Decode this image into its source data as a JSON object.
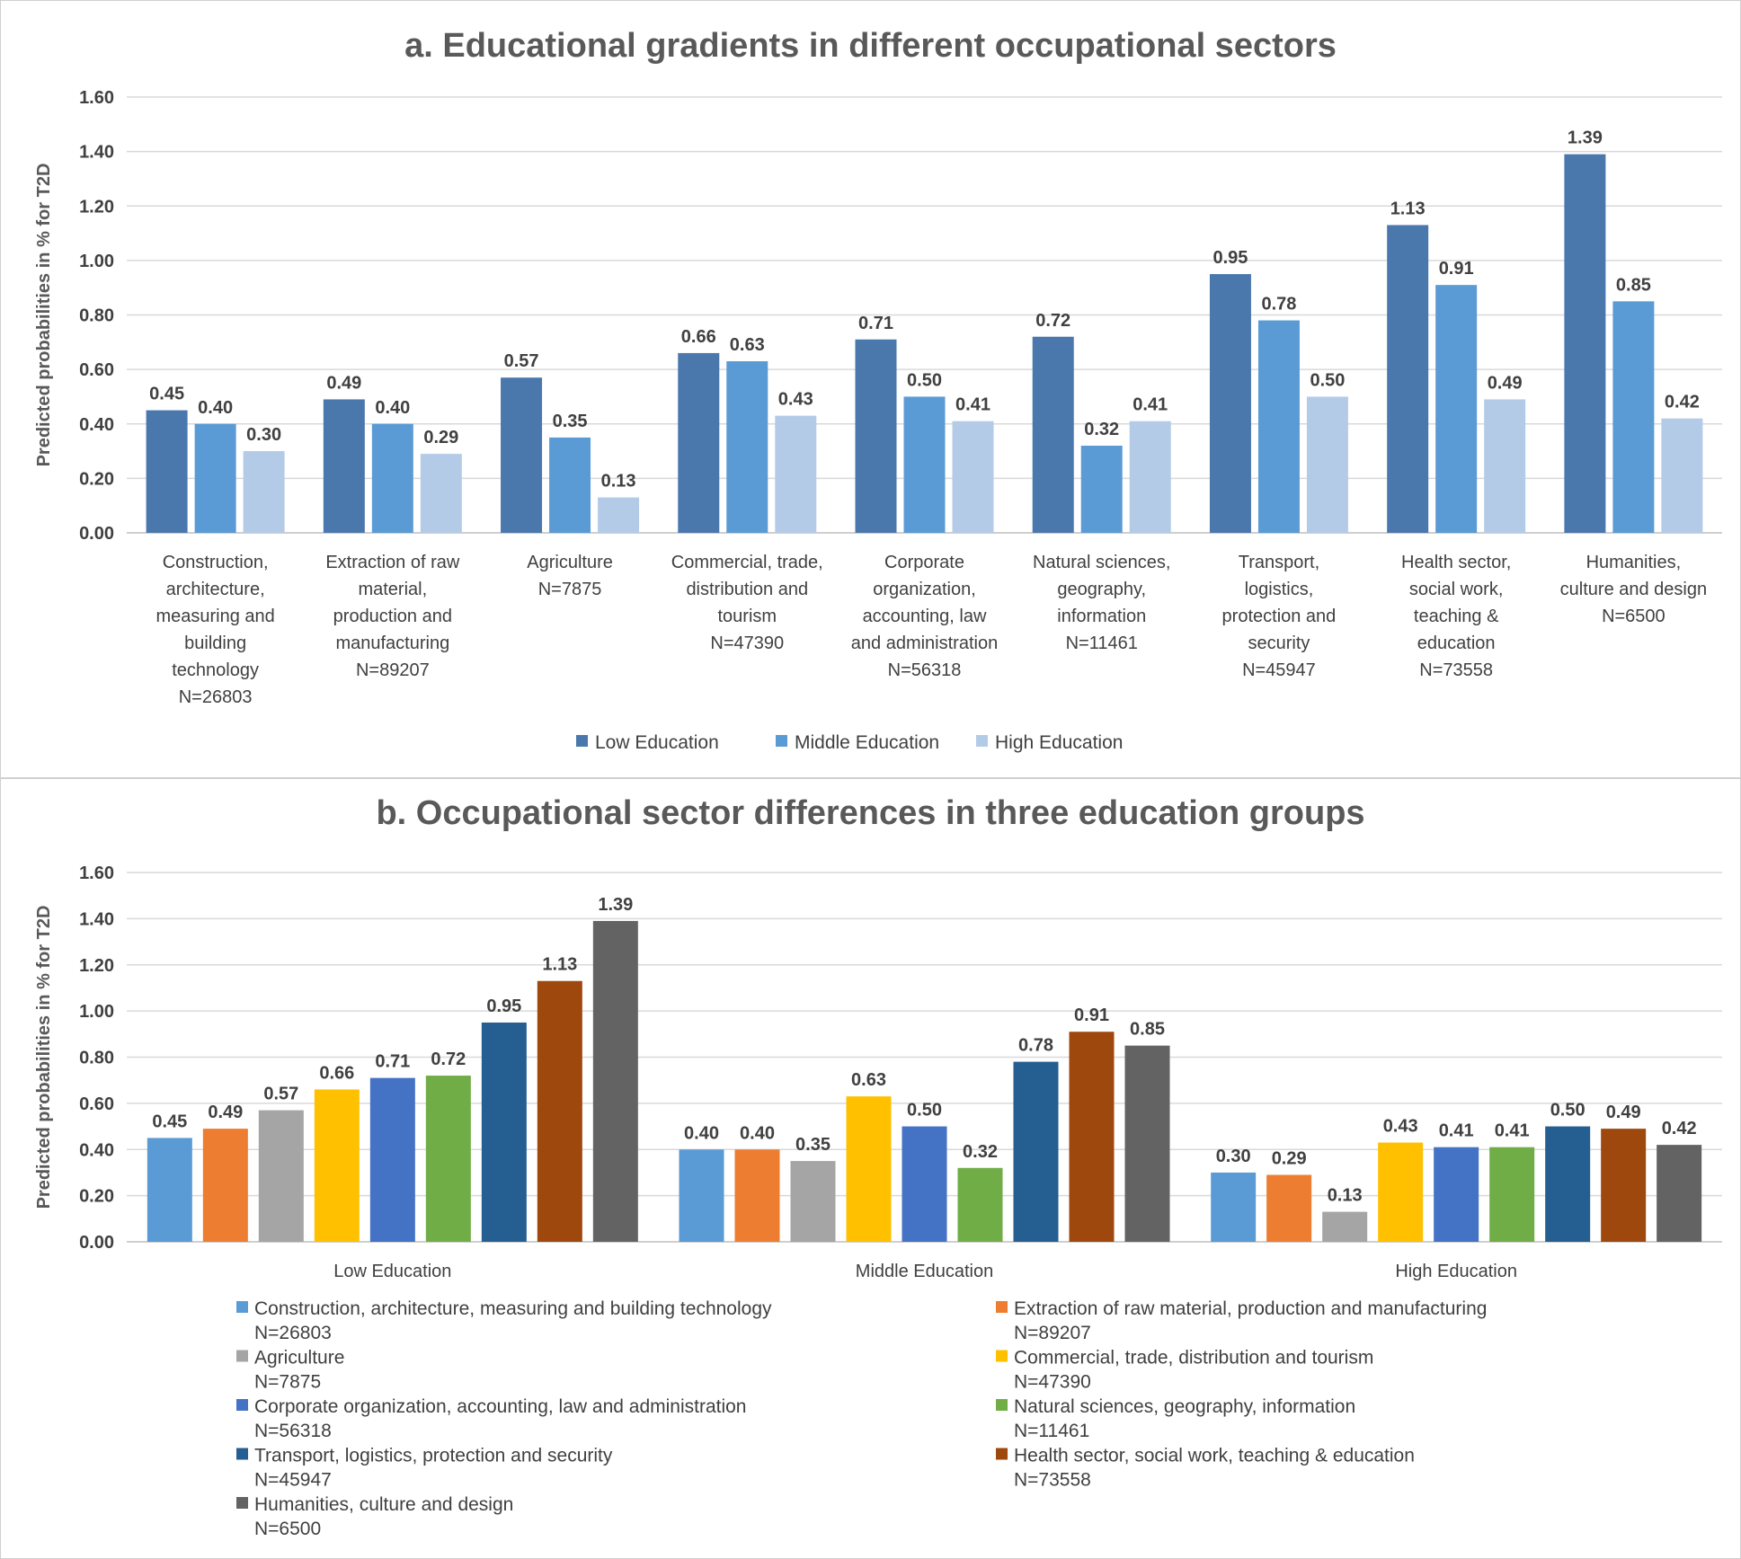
{
  "chart_data": [
    {
      "type": "bar",
      "title": "a. Educational gradients in different occupational sectors",
      "ylabel": "Predicted probabilities in % for T2D",
      "xlabel": "",
      "ylim": [
        0,
        1.6
      ],
      "yticks": [
        "0.00",
        "0.20",
        "0.40",
        "0.60",
        "0.80",
        "1.00",
        "1.20",
        "1.40",
        "1.60"
      ],
      "categories": [
        [
          "Construction,",
          "architecture,",
          "measuring and",
          "building",
          "technology",
          "N=26803"
        ],
        [
          "Extraction of raw",
          "material,",
          "production and",
          "manufacturing",
          "N=89207"
        ],
        [
          "Agriculture",
          "N=7875"
        ],
        [
          "Commercial, trade,",
          "distribution and",
          "tourism",
          "N=47390"
        ],
        [
          "Corporate",
          "organization,",
          "accounting, law",
          "and administration",
          "N=56318"
        ],
        [
          "Natural sciences,",
          "geography,",
          "information",
          "N=11461"
        ],
        [
          "Transport,",
          "logistics,",
          "protection and",
          "security",
          "N=45947"
        ],
        [
          "Health sector,",
          "social work,",
          "teaching &",
          "education",
          "N=73558"
        ],
        [
          "Humanities,",
          "culture and design",
          "N=6500"
        ]
      ],
      "series": [
        {
          "name": "Low Education",
          "color": "#4a78ad",
          "values": [
            0.45,
            0.49,
            0.57,
            0.66,
            0.71,
            0.72,
            0.95,
            1.13,
            1.39
          ],
          "labels": [
            "0.45",
            "0.49",
            "0.57",
            "0.66",
            "0.71",
            "0.72",
            "0.95",
            "1.13",
            "1.39"
          ]
        },
        {
          "name": "Middle Education",
          "color": "#5b9bd5",
          "values": [
            0.4,
            0.4,
            0.35,
            0.63,
            0.5,
            0.32,
            0.78,
            0.91,
            0.85
          ],
          "labels": [
            "0.40",
            "0.40",
            "0.35",
            "0.63",
            "0.50",
            "0.32",
            "0.78",
            "0.91",
            "0.85"
          ]
        },
        {
          "name": "High Education",
          "color": "#b4cbe8",
          "values": [
            0.3,
            0.29,
            0.13,
            0.43,
            0.41,
            0.41,
            0.5,
            0.49,
            0.42
          ],
          "labels": [
            "0.30",
            "0.29",
            "0.13",
            "0.43",
            "0.41",
            "0.41",
            "0.50",
            "0.49",
            "0.42"
          ]
        }
      ],
      "legend": "bottom"
    },
    {
      "type": "bar",
      "title": "b. Occupational sector differences in three education groups",
      "ylabel": "Predicted probabilities in % for T2D",
      "xlabel": "",
      "ylim": [
        0,
        1.6
      ],
      "yticks": [
        "0.00",
        "0.20",
        "0.40",
        "0.60",
        "0.80",
        "1.00",
        "1.20",
        "1.40",
        "1.60"
      ],
      "categories": [
        "Low Education",
        "Middle Education",
        "High Education"
      ],
      "series": [
        {
          "name": "Construction, architecture, measuring and building technology",
          "n": "N=26803",
          "color": "#5b9bd5",
          "values": [
            0.45,
            0.4,
            0.3
          ],
          "labels": [
            "0.45",
            "0.40",
            "0.30"
          ]
        },
        {
          "name": "Extraction of raw material, production and manufacturing",
          "n": "N=89207",
          "color": "#ed7d31",
          "values": [
            0.49,
            0.4,
            0.29
          ],
          "labels": [
            "0.49",
            "0.40",
            "0.29"
          ]
        },
        {
          "name": "Agriculture",
          "n": "N=7875",
          "color": "#a5a5a5",
          "values": [
            0.57,
            0.35,
            0.13
          ],
          "labels": [
            "0.57",
            "0.35",
            "0.13"
          ]
        },
        {
          "name": "Commercial, trade, distribution and tourism",
          "n": "N=47390",
          "color": "#ffc000",
          "values": [
            0.66,
            0.63,
            0.43
          ],
          "labels": [
            "0.66",
            "0.63",
            "0.43"
          ]
        },
        {
          "name": "Corporate organization, accounting, law and administration",
          "n": "N=56318",
          "color": "#4472c4",
          "values": [
            0.71,
            0.5,
            0.41
          ],
          "labels": [
            "0.71",
            "0.50",
            "0.41"
          ]
        },
        {
          "name": "Natural sciences, geography, information",
          "n": "N=11461",
          "color": "#70ad47",
          "values": [
            0.72,
            0.32,
            0.41
          ],
          "labels": [
            "0.72",
            "0.32",
            "0.41"
          ]
        },
        {
          "name": "Transport, logistics, protection and security",
          "n": "N=45947",
          "color": "#255e91",
          "values": [
            0.95,
            0.78,
            0.5
          ],
          "labels": [
            "0.95",
            "0.78",
            "0.50"
          ]
        },
        {
          "name": "Health sector, social work, teaching & education",
          "n": "N=73558",
          "color": "#9e480e",
          "values": [
            1.13,
            0.91,
            0.49
          ],
          "labels": [
            "1.13",
            "0.91",
            "0.49"
          ]
        },
        {
          "name": "Humanities, culture and design",
          "n": "N=6500",
          "color": "#636363",
          "values": [
            1.39,
            0.85,
            0.42
          ],
          "labels": [
            "1.39",
            "0.85",
            "0.42"
          ]
        }
      ],
      "legend": "bottom"
    }
  ]
}
